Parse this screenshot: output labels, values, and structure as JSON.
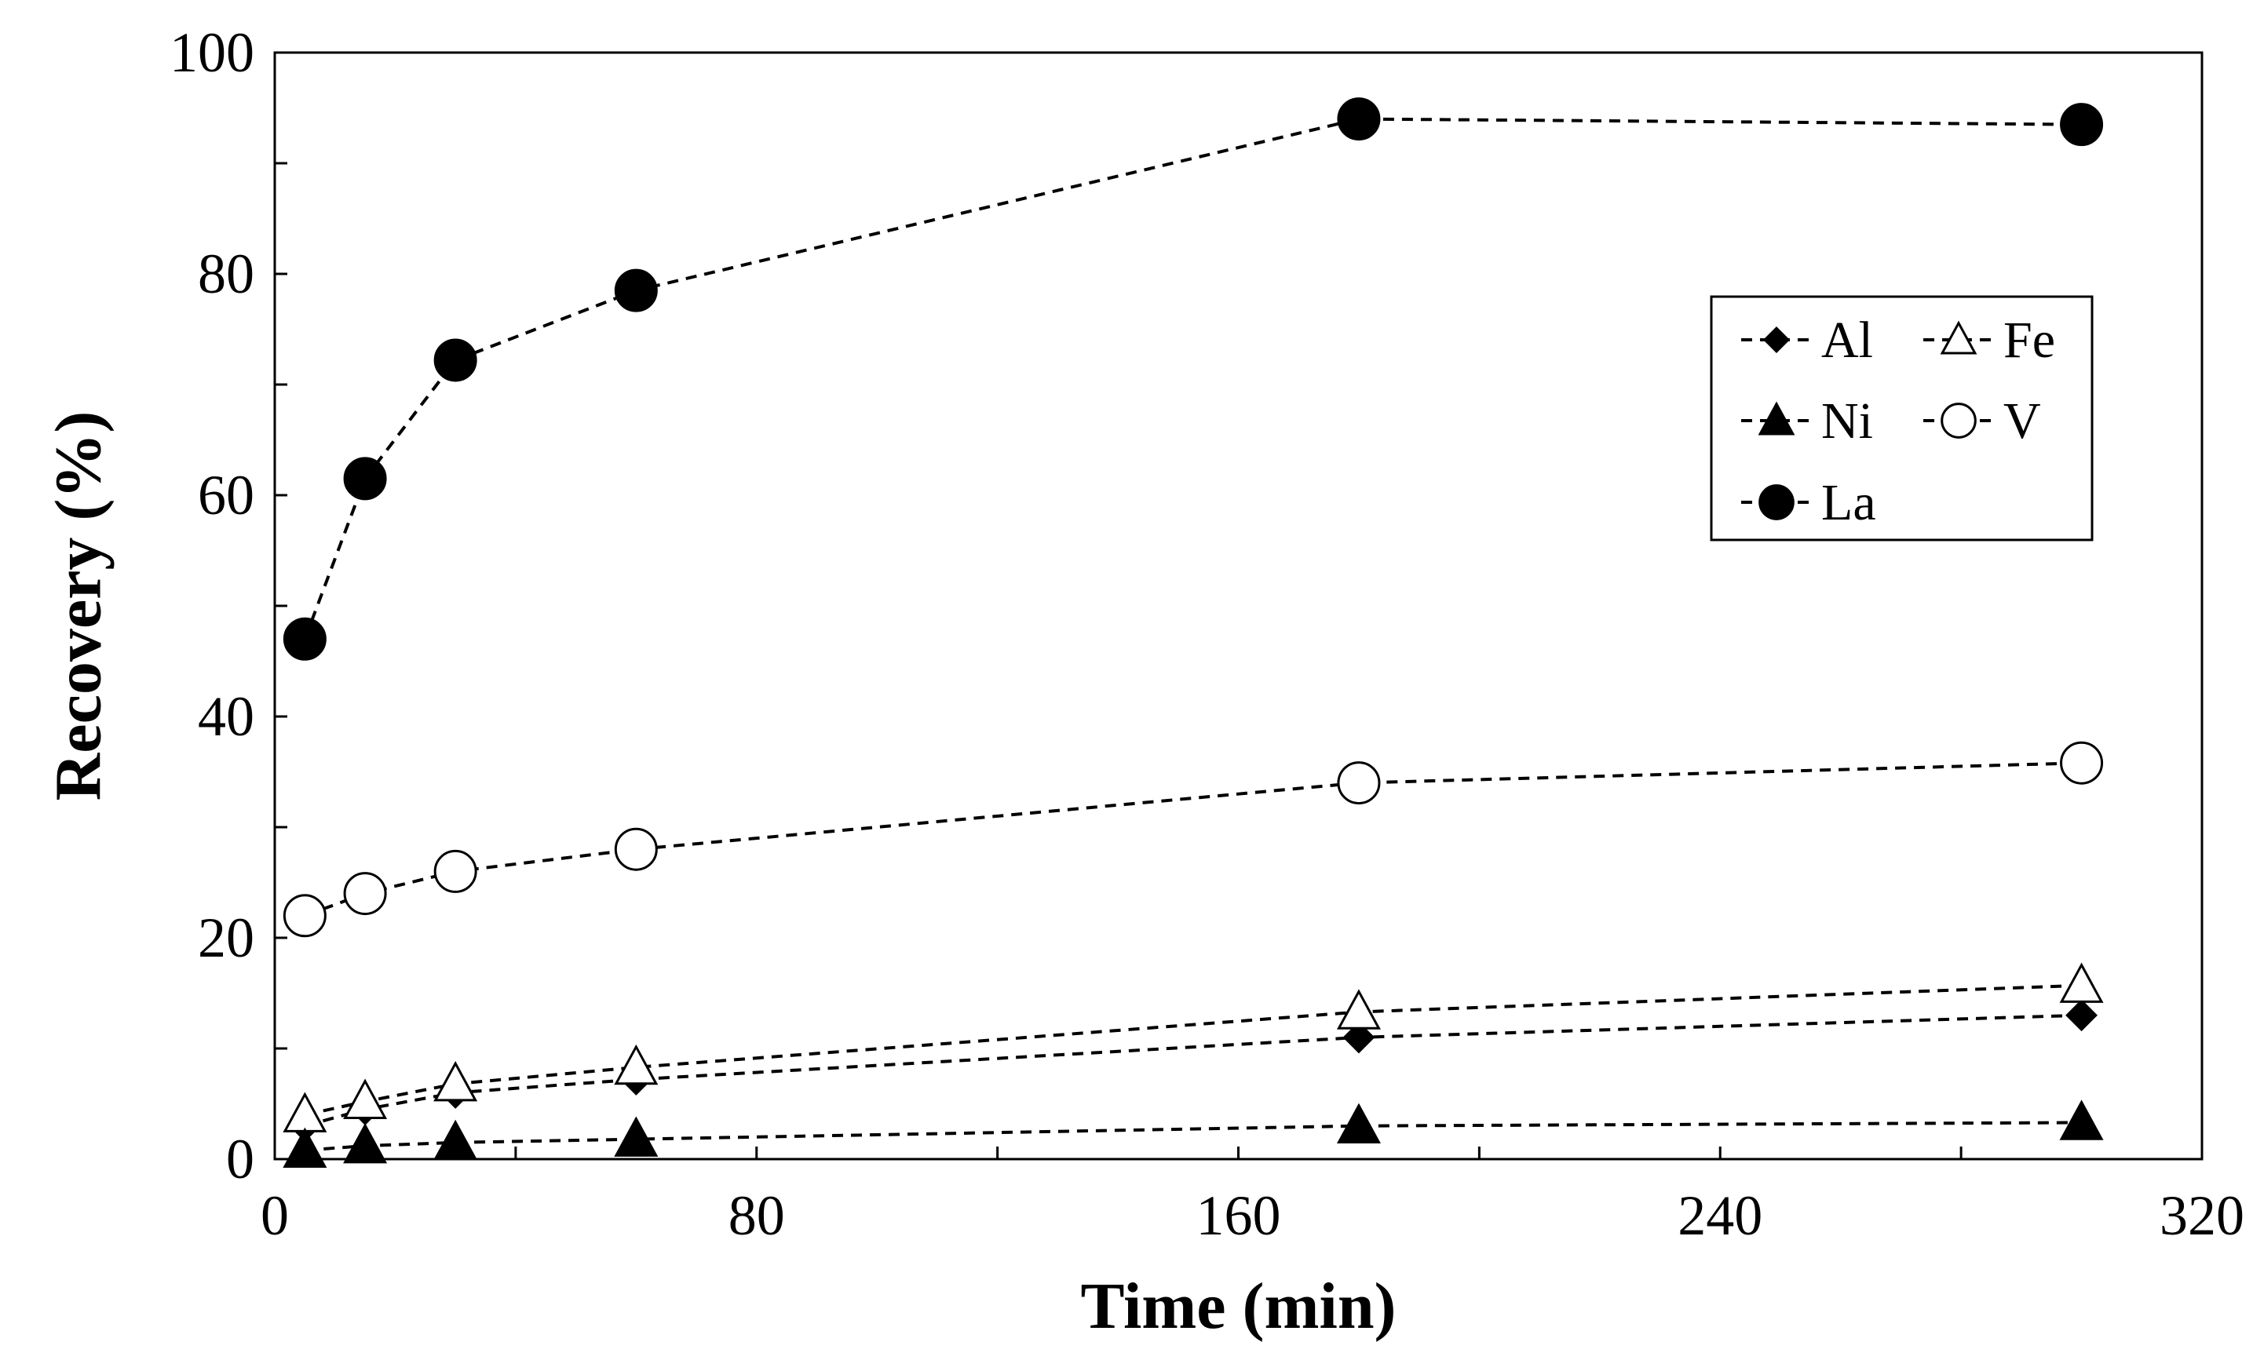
{
  "chart_data": {
    "type": "line",
    "title": "",
    "xlabel": "Time (min)",
    "ylabel": "Recovery (%)",
    "xlim": [
      0,
      320
    ],
    "ylim": [
      0,
      100
    ],
    "xticks": [
      0,
      80,
      160,
      240,
      320
    ],
    "yticks": [
      0,
      20,
      40,
      60,
      80,
      100
    ],
    "xtick_labels": [
      "0",
      "80",
      "160",
      "240",
      "320"
    ],
    "ytick_labels": [
      "0",
      "20",
      "40",
      "60",
      "80",
      "100"
    ],
    "x_minor_step": 40,
    "y_minor_step": 10,
    "grid": false,
    "legend_position": "upper-right",
    "x": [
      5,
      15,
      30,
      60,
      180,
      300
    ],
    "series": [
      {
        "name": "Al",
        "marker": "diamond-filled",
        "values": [
          3,
          4.5,
          6,
          7.2,
          11,
          13
        ]
      },
      {
        "name": "Fe",
        "marker": "triangle-open",
        "values": [
          4,
          5.2,
          6.8,
          8.3,
          13.3,
          15.7
        ]
      },
      {
        "name": "Ni",
        "marker": "triangle-filled",
        "values": [
          0.8,
          1.2,
          1.5,
          1.8,
          3,
          3.3
        ]
      },
      {
        "name": "V",
        "marker": "circle-open",
        "values": [
          22,
          24,
          26,
          28,
          34,
          35.8
        ]
      },
      {
        "name": "La",
        "marker": "circle-filled",
        "values": [
          47,
          61.5,
          72.2,
          78.5,
          94,
          93.5
        ]
      }
    ],
    "legend_order": [
      "Al",
      "Fe",
      "Ni",
      "V",
      "La"
    ]
  }
}
